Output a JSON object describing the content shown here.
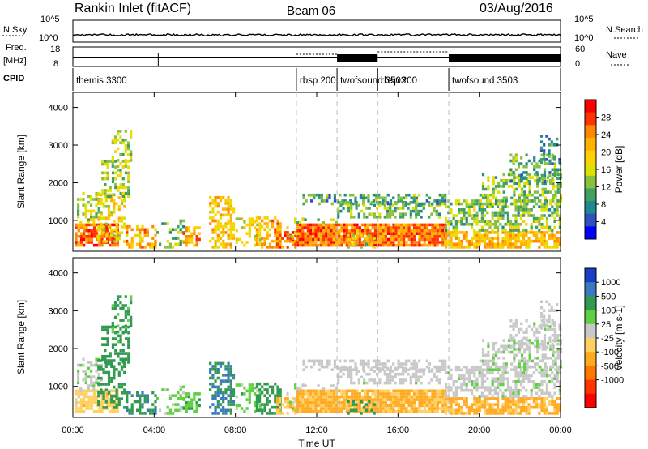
{
  "header": {
    "station": "Rankin Inlet (fitACF)",
    "beam": "Beam 06",
    "date": "03/Aug/2016"
  },
  "noise_panel": {
    "left_label": "N.Sky",
    "right_label": "N.Search",
    "left_ticks": [
      "10^5",
      "10^0"
    ],
    "right_ticks": [
      "10^5",
      "10^0"
    ]
  },
  "freq_panel": {
    "left_label_top": "Freq.",
    "left_label_unit": "[MHz]",
    "right_label": "Nave",
    "left_ticks": [
      "18",
      "8"
    ],
    "right_ticks": [
      "60",
      "0"
    ]
  },
  "cpid": {
    "label": "CPID",
    "segments": [
      {
        "name": "themis 3300",
        "start_hour": 0
      },
      {
        "name": "rbsp 200",
        "start_hour": 11
      },
      {
        "name": "twofsound 3503",
        "start_hour": 13
      },
      {
        "name": "rbsp 200",
        "start_hour": 15
      },
      {
        "name": "twofsound 3503",
        "start_hour": 18.5
      }
    ]
  },
  "axes": {
    "ylabel": "Slant Range [km]",
    "yticks": [
      "4000",
      "3000",
      "2000",
      "1000"
    ],
    "xlabel": "Time UT",
    "xticks": [
      "00:00",
      "04:00",
      "08:00",
      "12:00",
      "16:00",
      "20:00",
      "00:00"
    ]
  },
  "power_colorbar": {
    "label": "Power [dB]",
    "ticks": [
      "28",
      "24",
      "20",
      "16",
      "12",
      "8",
      "4"
    ],
    "colors": [
      "#ff0000",
      "#ff3300",
      "#ff8800",
      "#ffb000",
      "#ffd000",
      "#dde000",
      "#88c040",
      "#40a060",
      "#208890",
      "#3050c0",
      "#0000ff"
    ]
  },
  "velocity_colorbar": {
    "label": "Velocity [m s-1]",
    "ticks": [
      "1000",
      "500",
      "100",
      "25",
      "-25",
      "-100",
      "-500",
      "-1000"
    ],
    "colors": [
      "#1a3ec8",
      "#3a78c0",
      "#2f9a50",
      "#5fd040",
      "#c8c8c8",
      "#ffd060",
      "#ffaa20",
      "#ff7700",
      "#ff3300",
      "#ff0000"
    ]
  },
  "chart_data": {
    "type": "heatmap",
    "panels": [
      "Power [dB]",
      "Velocity [m s-1]"
    ],
    "x_range_hours": [
      0,
      24
    ],
    "y_range_km": [
      180,
      4400
    ],
    "mode_change_markers_hours": [
      11,
      13,
      15,
      18.5
    ],
    "scatter_bands": [
      {
        "t0": 0.1,
        "t1": 2.2,
        "r0": 300,
        "r1": 900,
        "power": 26,
        "velocity": -60,
        "density": 0.8
      },
      {
        "t0": 0.2,
        "t1": 1.4,
        "r0": 900,
        "r1": 1700,
        "power": 15,
        "velocity": 20,
        "density": 0.45
      },
      {
        "t0": 1.2,
        "t1": 2.6,
        "r0": 400,
        "r1": 1700,
        "power": 18,
        "velocity": 300,
        "density": 0.5
      },
      {
        "t0": 1.4,
        "t1": 2.8,
        "r0": 1600,
        "r1": 2600,
        "power": 14,
        "velocity": 200,
        "density": 0.45
      },
      {
        "t0": 1.9,
        "t1": 2.9,
        "r0": 2400,
        "r1": 3350,
        "power": 15,
        "velocity": 150,
        "density": 0.35
      },
      {
        "t0": 2.6,
        "t1": 4.1,
        "r0": 250,
        "r1": 800,
        "power": 22,
        "velocity": 400,
        "density": 0.55
      },
      {
        "t0": 4.1,
        "t1": 5.4,
        "r0": 250,
        "r1": 1000,
        "power": 12,
        "velocity": 40,
        "density": 0.25
      },
      {
        "t0": 5.4,
        "t1": 6.2,
        "r0": 300,
        "r1": 800,
        "power": 22,
        "velocity": 80,
        "density": 0.4
      },
      {
        "t0": 6.7,
        "t1": 7.9,
        "r0": 250,
        "r1": 1600,
        "power": 20,
        "velocity": 500,
        "density": 0.55
      },
      {
        "t0": 8.0,
        "t1": 9.2,
        "r0": 300,
        "r1": 1000,
        "power": 18,
        "velocity": 60,
        "density": 0.35
      },
      {
        "t0": 9.0,
        "t1": 10.2,
        "r0": 250,
        "r1": 1100,
        "power": 22,
        "velocity": 300,
        "density": 0.55
      },
      {
        "t0": 10.0,
        "t1": 11.2,
        "r0": 250,
        "r1": 700,
        "power": 26,
        "velocity": -80,
        "density": 0.6
      },
      {
        "t0": 10.5,
        "t1": 11.5,
        "r0": 300,
        "r1": 1000,
        "power": 18,
        "velocity": 20,
        "density": 0.35
      },
      {
        "t0": 11.0,
        "t1": 18.3,
        "r0": 300,
        "r1": 900,
        "power": 25,
        "velocity": -110,
        "density": 0.95
      },
      {
        "t0": 11.0,
        "t1": 13.0,
        "r0": 900,
        "r1": 1000,
        "power": 12,
        "velocity": 10,
        "density": 0.4
      },
      {
        "t0": 11.3,
        "t1": 15.2,
        "r0": 1400,
        "r1": 1700,
        "power": 10,
        "velocity": 0,
        "density": 0.5
      },
      {
        "t0": 13.0,
        "t1": 18.0,
        "r0": 1050,
        "r1": 1500,
        "power": 12,
        "velocity": 5,
        "density": 0.45
      },
      {
        "t0": 15.2,
        "t1": 18.3,
        "r0": 1400,
        "r1": 1650,
        "power": 10,
        "velocity": 0,
        "density": 0.5
      },
      {
        "t0": 13.5,
        "t1": 15.0,
        "r0": 250,
        "r1": 600,
        "power": 16,
        "velocity": 200,
        "density": 0.35
      },
      {
        "t0": 18.3,
        "t1": 24.0,
        "r0": 250,
        "r1": 700,
        "power": 21,
        "velocity": -130,
        "density": 0.75
      },
      {
        "t0": 18.3,
        "t1": 24.0,
        "r0": 700,
        "r1": 1500,
        "power": 13,
        "velocity": 10,
        "density": 0.55
      },
      {
        "t0": 20.0,
        "t1": 24.0,
        "r0": 1400,
        "r1": 2200,
        "power": 13,
        "velocity": 15,
        "density": 0.5
      },
      {
        "t0": 21.5,
        "t1": 24.0,
        "r0": 2000,
        "r1": 2700,
        "power": 10,
        "velocity": 5,
        "density": 0.35
      },
      {
        "t0": 23.0,
        "t1": 24.0,
        "r0": 2500,
        "r1": 3200,
        "power": 8,
        "velocity": 0,
        "density": 0.3
      }
    ]
  }
}
